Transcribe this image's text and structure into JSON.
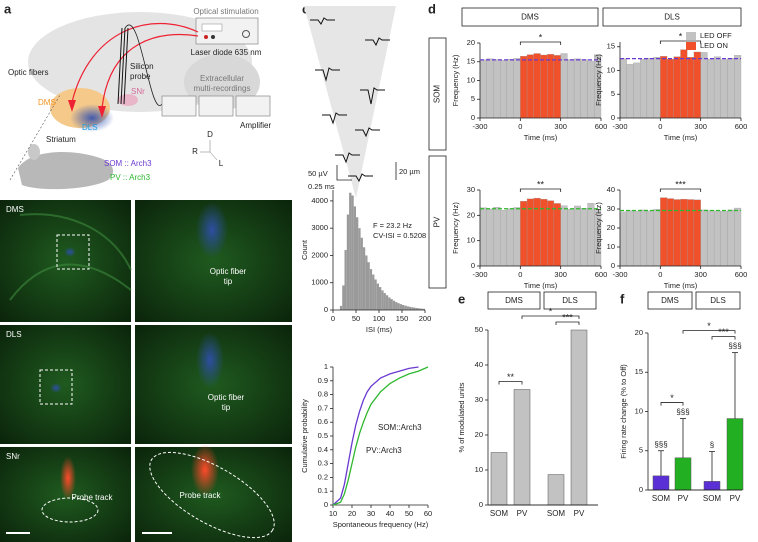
{
  "panel_labels": [
    "a",
    "b",
    "c",
    "d",
    "e",
    "f"
  ],
  "schematic": {
    "optical_stimulation": "Optical stimulation",
    "laser": "Laser diode 635 nm",
    "optic_fibers": "Optic fibers",
    "silicon_probe": [
      "Silicon",
      "probe"
    ],
    "snr": "SNr",
    "dms": "DMS",
    "dls": "DLS",
    "striatum": "Striatum",
    "recordings": [
      "Extracellular",
      "multi-recordings"
    ],
    "amplifier": "Amplifier",
    "orientation": [
      "D",
      "R",
      "L"
    ],
    "som": "SOM :: Arch3",
    "pv": "PV :: Arch3"
  },
  "histology": [
    {
      "region": "DMS",
      "right": [
        "Optic fiber",
        "tip"
      ]
    },
    {
      "region": "DLS",
      "right": [
        "Optic fiber",
        "tip"
      ]
    },
    {
      "region": "SNr",
      "left": [
        "Probe track"
      ],
      "right": [
        "Probe track"
      ]
    }
  ],
  "waveforms": {
    "voltage_scale": "50 µV",
    "time_scale": "0.25 ms",
    "depth_scale": "20 µm"
  },
  "panel_d": {
    "columns": [
      {
        "name": "DMS",
        "color": "#f39422"
      },
      {
        "name": "DLS",
        "color": "#1a9ee0"
      }
    ],
    "rows": [
      {
        "name": "SOM",
        "color": "#6a3ad0"
      },
      {
        "name": "PV",
        "color": "#2eb82e"
      }
    ],
    "legend": [
      {
        "name": "LED OFF",
        "color": "#c2c2c2"
      },
      {
        "name": "LED ON",
        "color": "#f0502a"
      }
    ]
  },
  "chart_data": [
    {
      "type": "histogram",
      "xlabel": "ISI (ms)",
      "ylabel": "Count",
      "annotations": [
        "F = 23.2 Hz",
        "CV-ISI = 0.5208"
      ],
      "color": "#9a9a9a",
      "bins": [
        0,
        5,
        10,
        15,
        20,
        25,
        30,
        35,
        40,
        45,
        50,
        55,
        60,
        65,
        70,
        75,
        80,
        85,
        90,
        95,
        100,
        105,
        110,
        115,
        120,
        125,
        130,
        135,
        140,
        145,
        150,
        155,
        160,
        165,
        170,
        175,
        180,
        185,
        190,
        195,
        200
      ],
      "values": [
        0,
        0,
        10,
        150,
        900,
        2200,
        3500,
        4300,
        4200,
        3800,
        3400,
        3000,
        2650,
        2300,
        2000,
        1750,
        1500,
        1300,
        1120,
        970,
        840,
        720,
        620,
        540,
        460,
        400,
        340,
        290,
        250,
        215,
        185,
        160,
        135,
        115,
        100,
        85,
        72,
        60,
        50,
        42
      ],
      "xlim": [
        0,
        200
      ],
      "xticks": [
        0,
        50,
        100,
        150,
        200
      ],
      "ylim": [
        0,
        4400
      ],
      "yticks": [
        0,
        1000,
        2000,
        3000,
        4000
      ]
    },
    {
      "type": "line",
      "xlabel": "Spontaneous frequency (Hz)",
      "ylabel": "Cumulative probability",
      "series": [
        {
          "name": "SOM::Arch3",
          "color": "#6a3ad0",
          "x": [
            10,
            14,
            16,
            18,
            20,
            22,
            24,
            26,
            28,
            30,
            35,
            40,
            45,
            50,
            55
          ],
          "values": [
            0,
            0.05,
            0.15,
            0.3,
            0.45,
            0.58,
            0.68,
            0.76,
            0.82,
            0.86,
            0.92,
            0.95,
            0.97,
            0.99,
            1
          ]
        },
        {
          "name": "PV::Arch3",
          "color": "#2eb82e",
          "x": [
            10,
            14,
            16,
            18,
            20,
            22,
            24,
            26,
            28,
            30,
            35,
            40,
            45,
            50,
            55,
            60
          ],
          "values": [
            0,
            0.02,
            0.08,
            0.18,
            0.3,
            0.42,
            0.52,
            0.6,
            0.67,
            0.73,
            0.82,
            0.88,
            0.92,
            0.95,
            0.97,
            1
          ]
        }
      ],
      "xlim": [
        10,
        60
      ],
      "xticks": [
        10,
        20,
        30,
        40,
        50,
        60
      ],
      "ylim": [
        0,
        1
      ],
      "yticks": [
        0,
        0.1,
        0.2,
        0.3,
        0.4,
        0.5,
        0.6,
        0.7,
        0.8,
        0.9,
        1
      ]
    },
    {
      "type": "histogram",
      "xlabel": "Time (ms)",
      "ylabel": "Frequency (Hz)",
      "bins": [
        -300,
        -250,
        -200,
        -150,
        -100,
        -50,
        0,
        50,
        100,
        150,
        200,
        250,
        300,
        350,
        400,
        450,
        500,
        550,
        600
      ],
      "series": [
        {
          "values": [
            15.5,
            15.8,
            15.6,
            15.4,
            15.7,
            15.9,
            null,
            null,
            null,
            null,
            null,
            null,
            17.2,
            15.6,
            15.8,
            15.6,
            15.2,
            16.9
          ]
        },
        {
          "values": [
            null,
            null,
            null,
            null,
            null,
            null,
            16.5,
            16.9,
            17.2,
            16.8,
            17.0,
            16.7,
            null,
            null,
            null,
            null,
            null,
            null
          ]
        }
      ],
      "baseline": 15.5,
      "baseline_color": "#6a3ad0",
      "significance": {
        "text": "*",
        "from": 0,
        "to": 300
      },
      "xlim": [
        -300,
        600
      ],
      "xticks": [
        -300,
        0,
        300,
        600
      ],
      "ylim": [
        0,
        20
      ],
      "yticks": [
        0,
        5,
        10,
        15,
        20
      ]
    },
    {
      "type": "histogram",
      "xlabel": "Time (ms)",
      "ylabel": "Frequency (Hz)",
      "bins": [
        -300,
        -250,
        -200,
        -150,
        -100,
        -50,
        0,
        50,
        100,
        150,
        200,
        250,
        300,
        350,
        400,
        450,
        500,
        550,
        600
      ],
      "series": [
        {
          "values": [
            12.5,
            11.3,
            11.6,
            12.4,
            12.6,
            12.8,
            null,
            null,
            null,
            null,
            null,
            null,
            13.8,
            12.4,
            12.9,
            12.3,
            12.6,
            13.2
          ]
        },
        {
          "values": [
            null,
            null,
            null,
            null,
            null,
            null,
            13.0,
            12.4,
            12.9,
            14.4,
            12.8,
            13.9,
            null,
            null,
            null,
            null,
            null,
            null
          ]
        }
      ],
      "baseline": 12.5,
      "baseline_color": "#6a3ad0",
      "significance": {
        "text": "*",
        "from": 0,
        "to": 300
      },
      "xlim": [
        -300,
        600
      ],
      "xticks": [
        -300,
        0,
        300,
        600
      ],
      "ylim": [
        0,
        16
      ],
      "yticks": [
        0,
        5,
        10,
        15
      ]
    },
    {
      "type": "histogram",
      "xlabel": "Time (ms)",
      "ylabel": "Frequency (Hz)",
      "bins": [
        -300,
        -250,
        -200,
        -150,
        -100,
        -50,
        0,
        50,
        100,
        150,
        200,
        250,
        300,
        350,
        400,
        450,
        500,
        550,
        600
      ],
      "series": [
        {
          "values": [
            23,
            22.5,
            23.2,
            22,
            22.6,
            23.1,
            null,
            null,
            null,
            null,
            null,
            null,
            23.8,
            22.4,
            23.7,
            22.8,
            24.8,
            22.3
          ]
        },
        {
          "values": [
            null,
            null,
            null,
            null,
            null,
            null,
            25.6,
            26.5,
            26.8,
            26.4,
            25.8,
            24.7,
            null,
            null,
            null,
            null,
            null,
            null
          ]
        }
      ],
      "baseline": 22.6,
      "baseline_color": "#2eb82e",
      "significance": {
        "text": "**",
        "from": 0,
        "to": 300
      },
      "xlim": [
        -300,
        600
      ],
      "xticks": [
        -300,
        0,
        300,
        600
      ],
      "ylim": [
        0,
        30
      ],
      "yticks": [
        0,
        10,
        20,
        30
      ]
    },
    {
      "type": "histogram",
      "xlabel": "Time (ms)",
      "ylabel": "Frequency (Hz)",
      "bins": [
        -300,
        -250,
        -200,
        -150,
        -100,
        -50,
        0,
        50,
        100,
        150,
        200,
        250,
        300,
        350,
        400,
        450,
        500,
        550,
        600
      ],
      "series": [
        {
          "values": [
            28.5,
            29.2,
            28.8,
            29.5,
            29,
            29.8,
            null,
            null,
            null,
            null,
            null,
            null,
            29.5,
            29.2,
            29,
            28.8,
            29.5,
            30.5
          ]
        },
        {
          "values": [
            null,
            null,
            null,
            null,
            null,
            null,
            36,
            35.5,
            35,
            35.2,
            35,
            34.8,
            null,
            null,
            null,
            null,
            null,
            null
          ]
        }
      ],
      "baseline": 29.2,
      "baseline_color": "#2eb82e",
      "significance": {
        "text": "***",
        "from": 0,
        "to": 300
      },
      "xlim": [
        -300,
        600
      ],
      "xticks": [
        -300,
        0,
        300,
        600
      ],
      "ylim": [
        0,
        40
      ],
      "yticks": [
        0,
        10,
        20,
        30,
        40
      ]
    },
    {
      "type": "bar",
      "ylabel": "% of modulated units",
      "groups": [
        {
          "name": "DMS",
          "color": "#f39422"
        },
        {
          "name": "DLS",
          "color": "#1a9ee0"
        }
      ],
      "categories": [
        "SOM",
        "PV",
        "SOM",
        "PV"
      ],
      "values": [
        15,
        33,
        8.7,
        50
      ],
      "colors": [
        "#c2c2c2",
        "#c2c2c2",
        "#c2c2c2",
        "#c2c2c2"
      ],
      "significance": [
        "**",
        "***",
        "*"
      ],
      "ylim": [
        0,
        50
      ],
      "yticks": [
        0,
        10,
        20,
        30,
        40,
        50
      ]
    },
    {
      "type": "bar",
      "ylabel": "Firing rate change (% to Off)",
      "groups": [
        {
          "name": "DMS",
          "color": "#f39422"
        },
        {
          "name": "DLS",
          "color": "#1a9ee0"
        }
      ],
      "categories": [
        "SOM",
        "PV",
        "SOM",
        "PV"
      ],
      "values": [
        1.8,
        4.1,
        1.1,
        9.1
      ],
      "errors": [
        3.2,
        5,
        3.8,
        8.4
      ],
      "colors": [
        "#5a30d6",
        "#22b022",
        "#5a30d6",
        "#22b022"
      ],
      "point_labels": [
        "§§§",
        "§§§",
        "§",
        "§§§"
      ],
      "significance": [
        "*",
        "***",
        "*"
      ],
      "ylim": [
        0,
        20
      ],
      "yticks": [
        0,
        5,
        10,
        15,
        20
      ]
    }
  ]
}
